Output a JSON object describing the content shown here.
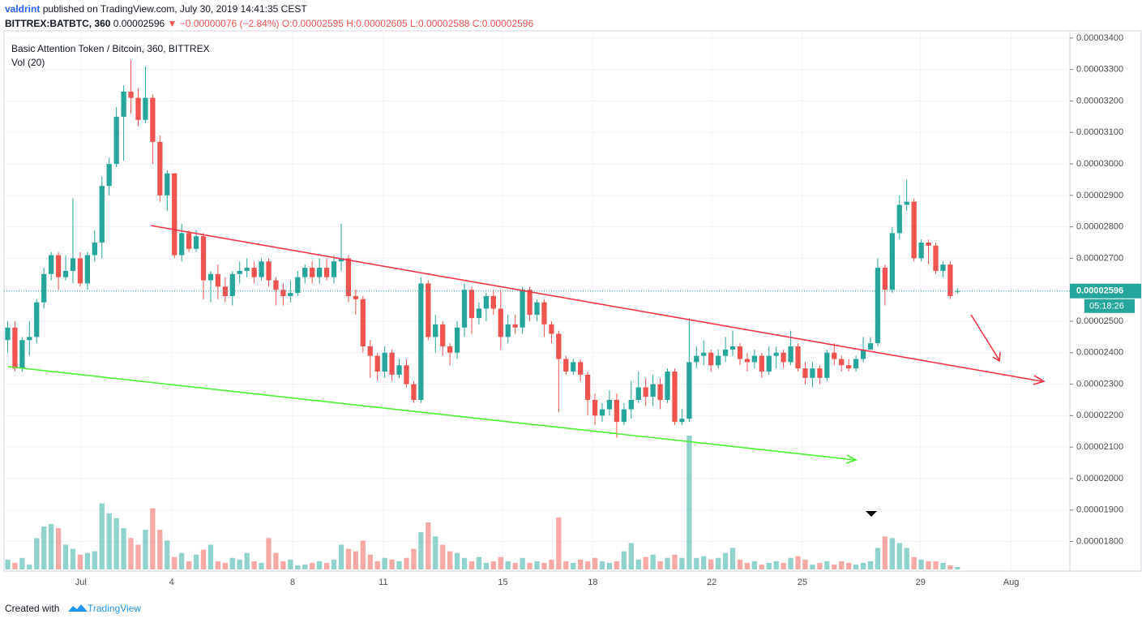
{
  "chart_data": {
    "type": "candlestick",
    "header": {
      "author": "valdrint",
      "published": "published on TradingView.com, July 30, 2019 14:41:35 CEST",
      "symbol": "BITTREX:BATBTC, 360",
      "last": "0.00002596",
      "change": "▼ −0.00000076 (−2.84%)",
      "ohlc": "O:0.00002595 H:0.00002605 L:0.00002588 C:0.00002596"
    },
    "legend_title": "Basic Attention Token / Bitcoin, 360, BITTREX",
    "volume_label": "Vol (20)",
    "last_price_label": "0.00002596",
    "countdown": "05:18:26",
    "footer": {
      "created": "Created with",
      "brand": "TradingView"
    },
    "up_color": "#26a69a",
    "down_color": "#ef5350",
    "grid": true,
    "categories": [
      null,
      null,
      null,
      null,
      null,
      null,
      null,
      null,
      null,
      null,
      null,
      null,
      null,
      null,
      null,
      null,
      null,
      null,
      null,
      null,
      null,
      null,
      null,
      null,
      null,
      null,
      null,
      null,
      null,
      null,
      null,
      null,
      null,
      null,
      null,
      null,
      null,
      null,
      null,
      null,
      null,
      null,
      null,
      null,
      null,
      null,
      null,
      null,
      null,
      null,
      null,
      null,
      null,
      null,
      null,
      null,
      null,
      null,
      null,
      null,
      null,
      null,
      null,
      null,
      null,
      null,
      null,
      null,
      null,
      null,
      null,
      null,
      null,
      null,
      null,
      null,
      null,
      null,
      null,
      null,
      null,
      null,
      null,
      null,
      null,
      null,
      null,
      null,
      null,
      null,
      null,
      null,
      null,
      null,
      null,
      null,
      null,
      null,
      null,
      null,
      null,
      null,
      null,
      null,
      null,
      null,
      null,
      null,
      null,
      null,
      null,
      null,
      null,
      null,
      null,
      null,
      null,
      null,
      null,
      null,
      null,
      null,
      null,
      null,
      null,
      null,
      null,
      null,
      null,
      null,
      null,
      null
    ],
    "open": [
      2.44e-05,
      2.48e-05,
      2.35e-05,
      2.44e-05,
      2.45e-05,
      2.56e-05,
      2.65e-05,
      2.71e-05,
      2.64e-05,
      2.66e-05,
      2.7e-05,
      2.62e-05,
      2.71e-05,
      2.75e-05,
      2.93e-05,
      3e-05,
      3.15e-05,
      3.23e-05,
      3.21e-05,
      3.14e-05,
      3.21e-05,
      3.07e-05,
      2.9e-05,
      2.97e-05,
      2.71e-05,
      2.78e-05,
      2.73e-05,
      2.77e-05,
      2.63e-05,
      2.65e-05,
      2.61e-05,
      2.58e-05,
      2.65e-05,
      2.66e-05,
      2.67e-05,
      2.64e-05,
      2.69e-05,
      2.63e-05,
      2.6e-05,
      2.58e-05,
      2.59e-05,
      2.64e-05,
      2.67e-05,
      2.64e-05,
      2.67e-05,
      2.64e-05,
      2.69e-05,
      2.7e-05,
      2.58e-05,
      2.57e-05,
      2.42e-05,
      2.39e-05,
      2.34e-05,
      2.4e-05,
      2.33e-05,
      2.36e-05,
      2.3e-05,
      2.25e-05,
      2.62e-05,
      2.45e-05,
      2.49e-05,
      2.42e-05,
      2.4e-05,
      2.48e-05,
      2.6e-05,
      2.51e-05,
      2.54e-05,
      2.58e-05,
      2.54e-05,
      2.45e-05,
      2.49e-05,
      2.48e-05,
      2.6e-05,
      2.52e-05,
      2.56e-05,
      2.49e-05,
      2.46e-05,
      2.38e-05,
      2.34e-05,
      2.37e-05,
      2.33e-05,
      2.25e-05,
      2.2e-05,
      2.22e-05,
      2.25e-05,
      2.18e-05,
      2.22e-05,
      2.25e-05,
      2.29e-05,
      2.26e-05,
      2.3e-05,
      2.25e-05,
      2.34e-05,
      2.18e-05,
      2.19e-05,
      2.37e-05,
      2.39e-05,
      2.4e-05,
      2.36e-05,
      2.39e-05,
      2.41e-05,
      2.42e-05,
      2.38e-05,
      2.37e-05,
      2.39e-05,
      2.34e-05,
      2.39e-05,
      2.4e-05,
      2.37e-05,
      2.42e-05,
      2.35e-05,
      2.32e-05,
      2.35e-05,
      2.32e-05,
      2.4e-05,
      2.38e-05,
      2.36e-05,
      2.35e-05,
      2.38e-05,
      2.41e-05,
      2.43e-05,
      2.67e-05,
      2.6e-05,
      2.78e-05,
      2.87e-05,
      2.88e-05,
      2.7e-05,
      2.75e-05,
      2.74e-05,
      2.66e-05,
      2.68e-05,
      2.595e-05
    ],
    "high": [
      2.5e-05,
      2.5e-05,
      2.45e-05,
      2.5e-05,
      2.57e-05,
      2.67e-05,
      2.72e-05,
      2.72e-05,
      2.71e-05,
      2.89e-05,
      2.72e-05,
      2.72e-05,
      2.79e-05,
      2.96e-05,
      3.02e-05,
      3.18e-05,
      3.25e-05,
      3.33e-05,
      3.24e-05,
      3.31e-05,
      3.22e-05,
      3.09e-05,
      2.98e-05,
      2.97e-05,
      2.81e-05,
      2.79e-05,
      2.79e-05,
      2.78e-05,
      2.66e-05,
      2.68e-05,
      2.64e-05,
      2.66e-05,
      2.69e-05,
      2.7e-05,
      2.69e-05,
      2.7e-05,
      2.7e-05,
      2.64e-05,
      2.62e-05,
      2.63e-05,
      2.66e-05,
      2.68e-05,
      2.69e-05,
      2.7e-05,
      2.7e-05,
      2.71e-05,
      2.81e-05,
      2.71e-05,
      2.6e-05,
      2.58e-05,
      2.44e-05,
      2.4e-05,
      2.42e-05,
      2.41e-05,
      2.38e-05,
      2.38e-05,
      2.31e-05,
      2.64e-05,
      2.63e-05,
      2.52e-05,
      2.5e-05,
      2.43e-05,
      2.5e-05,
      2.62e-05,
      2.61e-05,
      2.56e-05,
      2.59e-05,
      2.6e-05,
      2.6e-05,
      2.52e-05,
      2.52e-05,
      2.61e-05,
      2.61e-05,
      2.57e-05,
      2.57e-05,
      2.5e-05,
      2.47e-05,
      2.39e-05,
      2.38e-05,
      2.38e-05,
      2.34e-05,
      2.27e-05,
      2.24e-05,
      2.28e-05,
      2.27e-05,
      2.24e-05,
      2.31e-05,
      2.34e-05,
      2.32e-05,
      2.33e-05,
      2.32e-05,
      2.35e-05,
      2.35e-05,
      2.22e-05,
      2.51e-05,
      2.42e-05,
      2.44e-05,
      2.41e-05,
      2.41e-05,
      2.45e-05,
      2.47e-05,
      2.43e-05,
      2.4e-05,
      2.41e-05,
      2.4e-05,
      2.42e-05,
      2.42e-05,
      2.41e-05,
      2.47e-05,
      2.43e-05,
      2.37e-05,
      2.37e-05,
      2.36e-05,
      2.41e-05,
      2.43e-05,
      2.39e-05,
      2.38e-05,
      2.39e-05,
      2.45e-05,
      2.45e-05,
      2.7e-05,
      2.68e-05,
      2.8e-05,
      2.9e-05,
      2.95e-05,
      2.89e-05,
      2.76e-05,
      2.76e-05,
      2.75e-05,
      2.69e-05,
      2.69e-05,
      2.605e-05
    ],
    "low": [
      2.4e-05,
      2.34e-05,
      2.34e-05,
      2.39e-05,
      2.43e-05,
      2.54e-05,
      2.63e-05,
      2.6e-05,
      2.63e-05,
      2.62e-05,
      2.61e-05,
      2.6e-05,
      2.69e-05,
      2.7e-05,
      2.9e-05,
      2.99e-05,
      3.01e-05,
      3.16e-05,
      3.12e-05,
      3.13e-05,
      3e-05,
      2.88e-05,
      2.85e-05,
      2.7e-05,
      2.69e-05,
      2.72e-05,
      2.72e-05,
      2.57e-05,
      2.56e-05,
      2.57e-05,
      2.56e-05,
      2.55e-05,
      2.62e-05,
      2.64e-05,
      2.62e-05,
      2.63e-05,
      2.61e-05,
      2.55e-05,
      2.55e-05,
      2.56e-05,
      2.58e-05,
      2.62e-05,
      2.62e-05,
      2.62e-05,
      2.63e-05,
      2.62e-05,
      2.66e-05,
      2.56e-05,
      2.52e-05,
      2.4e-05,
      2.32e-05,
      2.31e-05,
      2.32e-05,
      2.31e-05,
      2.32e-05,
      2.29e-05,
      2.24e-05,
      2.24e-05,
      2.44e-05,
      2.4e-05,
      2.39e-05,
      2.36e-05,
      2.38e-05,
      2.45e-05,
      2.46e-05,
      2.49e-05,
      2.5e-05,
      2.52e-05,
      2.41e-05,
      2.43e-05,
      2.46e-05,
      2.46e-05,
      2.5e-05,
      2.5e-05,
      2.45e-05,
      2.43e-05,
      2.21e-05,
      2.33e-05,
      2.33e-05,
      2.31e-05,
      2.2e-05,
      2.17e-05,
      2.18e-05,
      2.2e-05,
      2.13e-05,
      2.17e-05,
      2.19e-05,
      2.24e-05,
      2.23e-05,
      2.23e-05,
      2.22e-05,
      2.24e-05,
      2.17e-05,
      2.17e-05,
      2.18e-05,
      2.35e-05,
      2.36e-05,
      2.34e-05,
      2.35e-05,
      2.37e-05,
      2.39e-05,
      2.36e-05,
      2.34e-05,
      2.35e-05,
      2.32e-05,
      2.33e-05,
      2.35e-05,
      2.35e-05,
      2.36e-05,
      2.34e-05,
      2.3e-05,
      2.29e-05,
      2.3e-05,
      2.31e-05,
      2.36e-05,
      2.34e-05,
      2.34e-05,
      2.34e-05,
      2.37e-05,
      2.41e-05,
      2.42e-05,
      2.55e-05,
      2.59e-05,
      2.76e-05,
      2.85e-05,
      2.69e-05,
      2.69e-05,
      2.68e-05,
      2.65e-05,
      2.64e-05,
      2.57e-05,
      2.588e-05
    ],
    "close": [
      2.48e-05,
      2.35e-05,
      2.44e-05,
      2.45e-05,
      2.56e-05,
      2.65e-05,
      2.71e-05,
      2.64e-05,
      2.66e-05,
      2.7e-05,
      2.62e-05,
      2.71e-05,
      2.75e-05,
      2.93e-05,
      3e-05,
      3.15e-05,
      3.23e-05,
      3.21e-05,
      3.14e-05,
      3.21e-05,
      3.07e-05,
      2.9e-05,
      2.97e-05,
      2.71e-05,
      2.78e-05,
      2.73e-05,
      2.77e-05,
      2.63e-05,
      2.65e-05,
      2.61e-05,
      2.58e-05,
      2.65e-05,
      2.66e-05,
      2.67e-05,
      2.64e-05,
      2.69e-05,
      2.63e-05,
      2.6e-05,
      2.58e-05,
      2.59e-05,
      2.64e-05,
      2.67e-05,
      2.64e-05,
      2.67e-05,
      2.64e-05,
      2.69e-05,
      2.7e-05,
      2.58e-05,
      2.57e-05,
      2.42e-05,
      2.39e-05,
      2.34e-05,
      2.4e-05,
      2.33e-05,
      2.36e-05,
      2.3e-05,
      2.25e-05,
      2.62e-05,
      2.45e-05,
      2.49e-05,
      2.42e-05,
      2.4e-05,
      2.48e-05,
      2.6e-05,
      2.51e-05,
      2.54e-05,
      2.58e-05,
      2.54e-05,
      2.45e-05,
      2.49e-05,
      2.48e-05,
      2.6e-05,
      2.52e-05,
      2.56e-05,
      2.49e-05,
      2.46e-05,
      2.38e-05,
      2.34e-05,
      2.37e-05,
      2.33e-05,
      2.25e-05,
      2.2e-05,
      2.22e-05,
      2.25e-05,
      2.18e-05,
      2.22e-05,
      2.25e-05,
      2.29e-05,
      2.26e-05,
      2.3e-05,
      2.25e-05,
      2.34e-05,
      2.18e-05,
      2.19e-05,
      2.37e-05,
      2.39e-05,
      2.4e-05,
      2.36e-05,
      2.39e-05,
      2.41e-05,
      2.42e-05,
      2.38e-05,
      2.37e-05,
      2.39e-05,
      2.34e-05,
      2.39e-05,
      2.4e-05,
      2.37e-05,
      2.42e-05,
      2.35e-05,
      2.32e-05,
      2.35e-05,
      2.32e-05,
      2.4e-05,
      2.38e-05,
      2.36e-05,
      2.35e-05,
      2.38e-05,
      2.41e-05,
      2.43e-05,
      2.67e-05,
      2.6e-05,
      2.78e-05,
      2.87e-05,
      2.88e-05,
      2.7e-05,
      2.75e-05,
      2.74e-05,
      2.66e-05,
      2.68e-05,
      2.58e-05,
      2.596e-05
    ],
    "volume": [
      12,
      8,
      14,
      6,
      38,
      52,
      55,
      50,
      30,
      25,
      18,
      20,
      22,
      80,
      68,
      62,
      50,
      38,
      30,
      48,
      74,
      48,
      35,
      15,
      20,
      10,
      18,
      24,
      30,
      10,
      8,
      14,
      12,
      20,
      10,
      8,
      38,
      20,
      10,
      12,
      5,
      6,
      8,
      10,
      8,
      12,
      30,
      25,
      22,
      35,
      18,
      10,
      14,
      12,
      10,
      14,
      25,
      45,
      57,
      40,
      30,
      22,
      20,
      14,
      10,
      15,
      8,
      10,
      15,
      10,
      8,
      14,
      8,
      10,
      8,
      12,
      63,
      10,
      8,
      12,
      10,
      14,
      10,
      8,
      10,
      22,
      32,
      12,
      15,
      18,
      10,
      14,
      18,
      14,
      162,
      14,
      16,
      12,
      14,
      20,
      26,
      12,
      8,
      10,
      6,
      8,
      10,
      8,
      14,
      16,
      12,
      6,
      8,
      10,
      6,
      10,
      8,
      6,
      8,
      10,
      26,
      40,
      38,
      32,
      26,
      15,
      12,
      10,
      10,
      8,
      5,
      3
    ],
    "xlim": [
      -0.5,
      146.5
    ],
    "xticks": [
      {
        "value": 10.1,
        "label": "Jul"
      },
      {
        "value": 22.6,
        "label": "4"
      },
      {
        "value": 39.3,
        "label": "8"
      },
      {
        "value": 51.8,
        "label": "11"
      },
      {
        "value": 68.3,
        "label": "15"
      },
      {
        "value": 80.7,
        "label": "18"
      },
      {
        "value": 97.1,
        "label": "22"
      },
      {
        "value": 109.6,
        "label": "25"
      },
      {
        "value": 125.9,
        "label": "29"
      },
      {
        "value": 138.4,
        "label": "Aug"
      }
    ],
    "ylim": [
      1.711e-05,
      3.423e-05
    ],
    "yticks": [
      {
        "value": 1.8e-05,
        "label": "0.00001800"
      },
      {
        "value": 1.9e-05,
        "label": "0.00001900"
      },
      {
        "value": 2e-05,
        "label": "0.00002000"
      },
      {
        "value": 2.1e-05,
        "label": "0.00002100"
      },
      {
        "value": 2.2e-05,
        "label": "0.00002200"
      },
      {
        "value": 2.3e-05,
        "label": "0.00002300"
      },
      {
        "value": 2.4e-05,
        "label": "0.00002400"
      },
      {
        "value": 2.5e-05,
        "label": "0.00002500"
      },
      {
        "value": 2.6e-05,
        "label": "0.00002600"
      },
      {
        "value": 2.7e-05,
        "label": "0.00002700"
      },
      {
        "value": 2.8e-05,
        "label": "0.00002800"
      },
      {
        "value": 2.9e-05,
        "label": "0.00002900"
      },
      {
        "value": 3e-05,
        "label": "0.00003000"
      },
      {
        "value": 3.1e-05,
        "label": "0.00003100"
      },
      {
        "value": 3.2e-05,
        "label": "0.00003200"
      },
      {
        "value": 3.3e-05,
        "label": "0.00003300"
      },
      {
        "value": 3.4e-05,
        "label": "0.00003400"
      }
    ]
  }
}
